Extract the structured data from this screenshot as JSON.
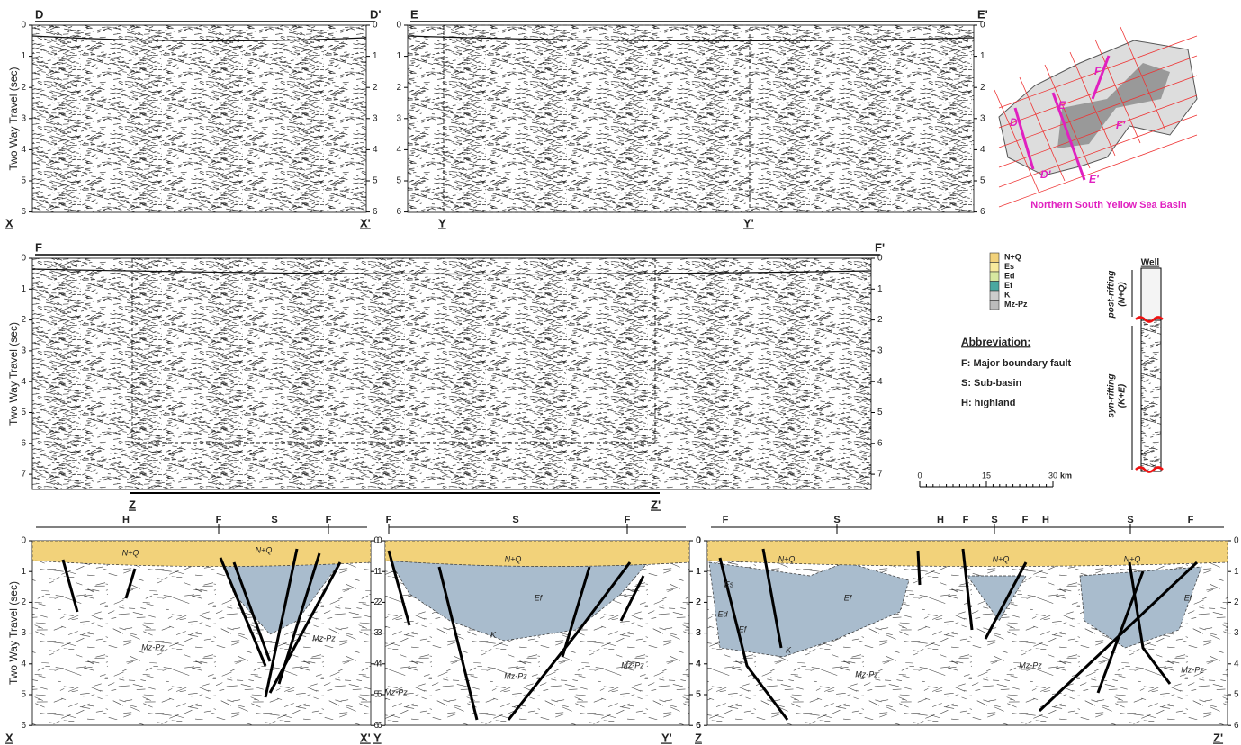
{
  "seismic_sections": [
    {
      "left": "D",
      "right": "D'",
      "bottom_left": "X",
      "bottom_right": "X'",
      "y_axis_label": "Two Way Travel (sec)",
      "yticks": [
        0,
        1,
        2,
        3,
        4,
        5,
        6
      ]
    },
    {
      "left": "E",
      "right": "E'",
      "bottom_left": "Y",
      "bottom_right": "Y'",
      "yticks": [
        0,
        1,
        2,
        3,
        4,
        5,
        6
      ]
    },
    {
      "left": "F",
      "right": "F'",
      "bottom_left": "Z",
      "bottom_right": "Z'",
      "y_axis_label": "Two Way Travel (sec)",
      "yticks": [
        0,
        1,
        2,
        3,
        4,
        5,
        6,
        7
      ]
    }
  ],
  "interpreted_sections": [
    {
      "bottom_left": "X",
      "bottom_right": "X'",
      "y_axis_label": "Two Way Travel (sec)",
      "yticks": [
        0,
        1,
        2,
        3,
        4,
        5,
        6
      ],
      "top_labels": [
        "H",
        "F",
        "S",
        "F"
      ],
      "unit_labels": [
        "N+Q",
        "N+Q",
        "Mz-Pz",
        "Mz-Pz"
      ]
    },
    {
      "bottom_left": "Y",
      "bottom_right": "Y'",
      "yticks": [
        0,
        1,
        2,
        3,
        4,
        5,
        6
      ],
      "top_labels": [
        "F",
        "S",
        "F"
      ],
      "unit_labels": [
        "N+Q",
        "Ef",
        "K",
        "Mz-Pz",
        "Mz-Pz",
        "Mz-Pz"
      ]
    },
    {
      "bottom_left": "Z",
      "bottom_right": "Z'",
      "yticks": [
        0,
        1,
        2,
        3,
        4,
        5,
        6
      ],
      "top_labels": [
        "F",
        "S",
        "H",
        "F",
        "S",
        "F",
        "H",
        "S",
        "F"
      ],
      "unit_labels": [
        "N+Q",
        "Ef",
        "Es",
        "Ed",
        "Ef",
        "K",
        "Mz-Pz",
        "N+Q",
        "Mz-Pz",
        "N+Q",
        "Ef",
        "Mz-Pz"
      ]
    }
  ],
  "map": {
    "title": "Northern South Yellow Sea Basin",
    "labels": [
      "D",
      "D'",
      "E",
      "E'",
      "F",
      "F'"
    ]
  },
  "legend": {
    "items": [
      "N+Q",
      "Es",
      "Ed",
      "Ef",
      "K",
      "Mz-Pz"
    ]
  },
  "abbreviation": {
    "title": "Abbreviation:",
    "items": [
      "F: Major boundary fault",
      "S: Sub-basin",
      "H: highland"
    ]
  },
  "scale_bar": {
    "ticks": [
      0,
      15,
      30
    ],
    "unit": "km"
  },
  "well": {
    "title": "Well",
    "post": "post-rifting",
    "post_units": "(N+Q)",
    "syn": "syn-rifting",
    "syn_units": "(K+E)"
  }
}
